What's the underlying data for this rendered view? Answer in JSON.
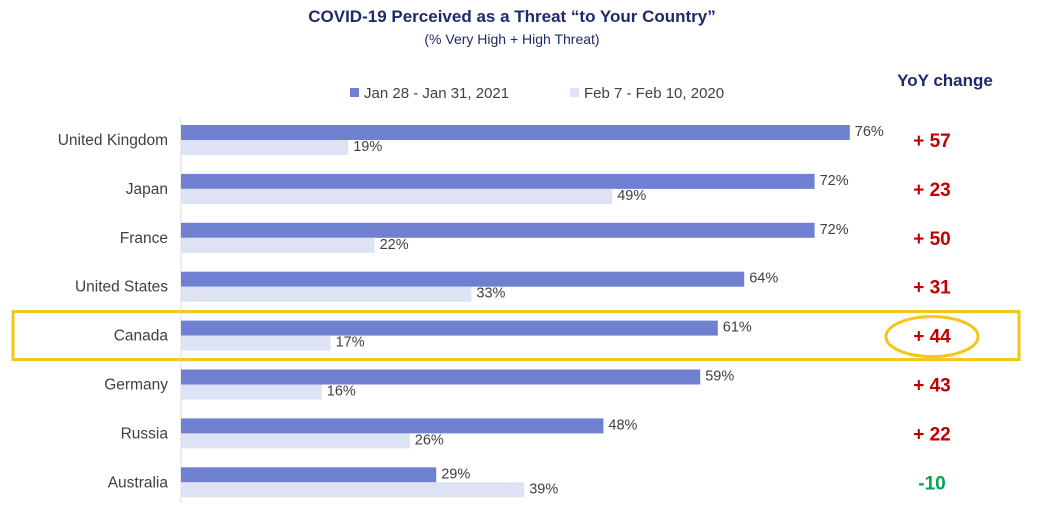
{
  "chart_data": {
    "type": "bar",
    "orientation": "horizontal",
    "title": "COVID-19 Perceived as a Threat “to Your Country”",
    "subtitle": "(% Very High + High Threat)",
    "categories": [
      "United Kingdom",
      "Japan",
      "France",
      "United States",
      "Canada",
      "Germany",
      "Russia",
      "Australia"
    ],
    "series": [
      {
        "name": "Jan 28 - Jan 31, 2021",
        "color": "#6f80d1",
        "values": [
          76,
          72,
          72,
          64,
          61,
          59,
          48,
          29
        ]
      },
      {
        "name": "Feb 7 - Feb 10, 2020",
        "color": "#dde2f5",
        "values": [
          19,
          49,
          22,
          33,
          17,
          16,
          26,
          39
        ]
      }
    ],
    "value_suffix": "%",
    "xlim": [
      0,
      100
    ],
    "legend_position": "top",
    "grid": false,
    "yoy": {
      "header": "YoY change",
      "values": [
        "+ 57",
        "+ 23",
        "+ 50",
        "+ 31",
        "+ 44",
        "+ 43",
        "+ 22",
        "-10"
      ],
      "colors": [
        "#c00000",
        "#c00000",
        "#c00000",
        "#c00000",
        "#c00000",
        "#c00000",
        "#c00000",
        "#00a651"
      ]
    },
    "highlight": {
      "category": "Canada",
      "color": "#f5c518"
    }
  }
}
